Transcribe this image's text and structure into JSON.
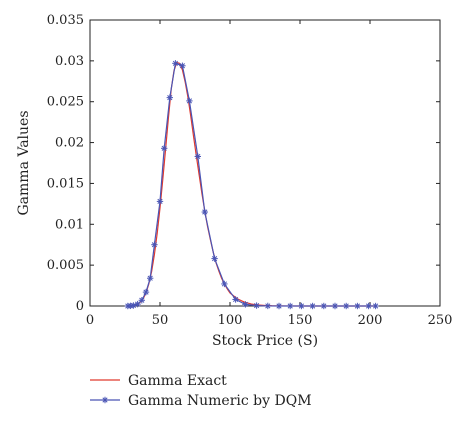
{
  "chart_data": {
    "type": "line",
    "title": "",
    "xlabel": "Stock Price (S)",
    "ylabel": "Gamma Values",
    "xlim": [
      0,
      250
    ],
    "ylim": [
      0,
      0.035
    ],
    "xticks": [
      0,
      50,
      100,
      150,
      200,
      250
    ],
    "yticks": [
      0,
      0.005,
      0.01,
      0.015,
      0.02,
      0.025,
      0.03,
      0.035
    ],
    "xtick_labels": [
      "0",
      "50",
      "100",
      "150",
      "200",
      "250"
    ],
    "ytick_labels": [
      "0",
      "0.005",
      "0.01",
      "0.015",
      "0.02",
      "0.025",
      "0.03",
      "0.035"
    ],
    "grid": false,
    "legend_position": "below",
    "series": [
      {
        "name": "Gamma Exact",
        "color": "#e03a2f",
        "marker": "none",
        "x": [
          26,
          28,
          30,
          32,
          34,
          36,
          38,
          40,
          42,
          44,
          46,
          48,
          50,
          52,
          54,
          56,
          58,
          60,
          62,
          64,
          66,
          68,
          70,
          72,
          74,
          76,
          78,
          80,
          82,
          84,
          86,
          88,
          90,
          92,
          94,
          96,
          98,
          100,
          105,
          110,
          115,
          120,
          125,
          130,
          140,
          150,
          160,
          170,
          180,
          190,
          200,
          204
        ],
        "y": [
          0.0,
          1e-05,
          4e-05,
          0.0001,
          0.00023,
          0.00048,
          0.0009,
          0.0016,
          0.0027,
          0.0042,
          0.0063,
          0.0089,
          0.012,
          0.0155,
          0.0192,
          0.023,
          0.0265,
          0.0288,
          0.0298,
          0.0297,
          0.0289,
          0.0274,
          0.0255,
          0.0232,
          0.0207,
          0.0183,
          0.016,
          0.0137,
          0.0116,
          0.0097,
          0.0081,
          0.0066,
          0.0053,
          0.0043,
          0.0034,
          0.0027,
          0.0021,
          0.0016,
          0.0009,
          0.0005,
          0.00025,
          0.00012,
          6e-05,
          3e-05,
          1e-05,
          0.0,
          0.0,
          0.0,
          0.0,
          0.0,
          0.0,
          0.0
        ]
      },
      {
        "name": "Gamma Numeric by DQM",
        "color": "#4a55b5",
        "marker": "star",
        "x": [
          27,
          29,
          31,
          34,
          37,
          40,
          43,
          46,
          50,
          53,
          57,
          61,
          66,
          71,
          77,
          82,
          89,
          96,
          104,
          111,
          119,
          127,
          135,
          143,
          151,
          159,
          167,
          175,
          183,
          191,
          199,
          204
        ],
        "y": [
          0.0,
          2e-05,
          6e-05,
          0.00023,
          0.0007,
          0.0017,
          0.0034,
          0.0075,
          0.0128,
          0.0193,
          0.0255,
          0.0297,
          0.0294,
          0.0251,
          0.0183,
          0.0115,
          0.0058,
          0.0027,
          0.0008,
          0.0002,
          5e-05,
          1e-05,
          0.0,
          0.0,
          0.0,
          0.0,
          0.0,
          0.0,
          0.0,
          0.0,
          0.0,
          0.0
        ]
      }
    ]
  }
}
